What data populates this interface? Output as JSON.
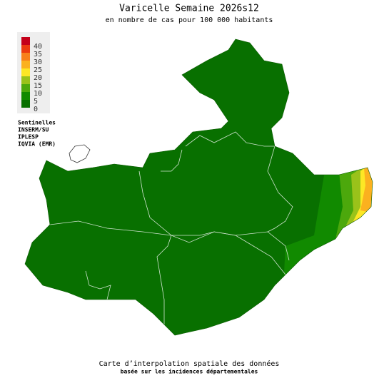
{
  "title": "Varicelle Semaine 2026s12",
  "subtitle": "en nombre de cas pour 100 000 habitants",
  "legend": [
    {
      "value": 40,
      "color": "#c4001a"
    },
    {
      "value": 35,
      "color": "#ec3b0f"
    },
    {
      "value": 30,
      "color": "#f8801a"
    },
    {
      "value": 25,
      "color": "#fbb11f"
    },
    {
      "value": 20,
      "color": "#fde725"
    },
    {
      "value": 15,
      "color": "#9ac21a"
    },
    {
      "value": 10,
      "color": "#4ca80c"
    },
    {
      "value": 5,
      "color": "#118a00"
    },
    {
      "value": 0,
      "color": "#087000"
    }
  ],
  "sources": [
    "Sentinelles",
    "INSERM/SU",
    "IPLESP",
    "IQVIA (EMR)"
  ],
  "footer": {
    "line1": "Carte d’interpolation spatiale des données",
    "line2": "basée sur les incidences départementales"
  }
}
